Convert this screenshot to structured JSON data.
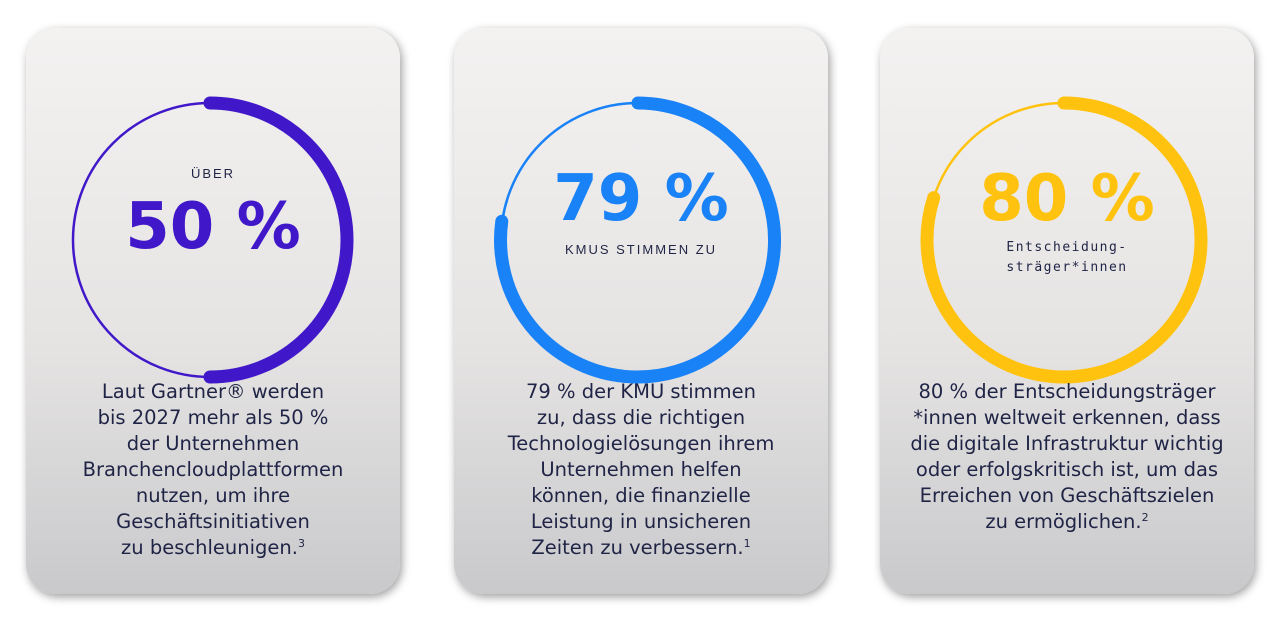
{
  "cards": [
    {
      "pre_label": "ÜBER",
      "value": "50 %",
      "accent_color": "#4118c9",
      "percent": 50,
      "description_lines": [
        "Laut Gartner® werden",
        "bis 2027 mehr als 50 %",
        "der Unternehmen",
        "Branchencloudplattformen",
        "nutzen, um ihre",
        "Geschäftsinitiativen",
        "zu beschleunigen."
      ],
      "footnote": "3"
    },
    {
      "value": "79 %",
      "sub_label": "KMUS STIMMEN ZU",
      "accent_color": "#1a82f7",
      "percent": 79,
      "description_lines": [
        "79 % der KMU stimmen",
        "zu, dass die richtigen",
        "Technologielösungen ihrem",
        "Unternehmen helfen",
        "können, die finanzielle",
        "Leistung in unsicheren",
        "Zeiten zu verbessern."
      ],
      "footnote": "1"
    },
    {
      "value": "80 %",
      "sub_label_lines": [
        "Entscheidung-",
        "sträger*innen"
      ],
      "accent_color": "#ffc20e",
      "percent": 80,
      "description_lines": [
        "80 % der Entscheidungsträger",
        "*innen weltweit erkennen, dass",
        "die digitale Infrastruktur wichtig",
        "oder erfolgskritisch ist, um das",
        "Erreichen von Geschäftszielen",
        "zu ermöglichen."
      ],
      "footnote": "2"
    }
  ]
}
